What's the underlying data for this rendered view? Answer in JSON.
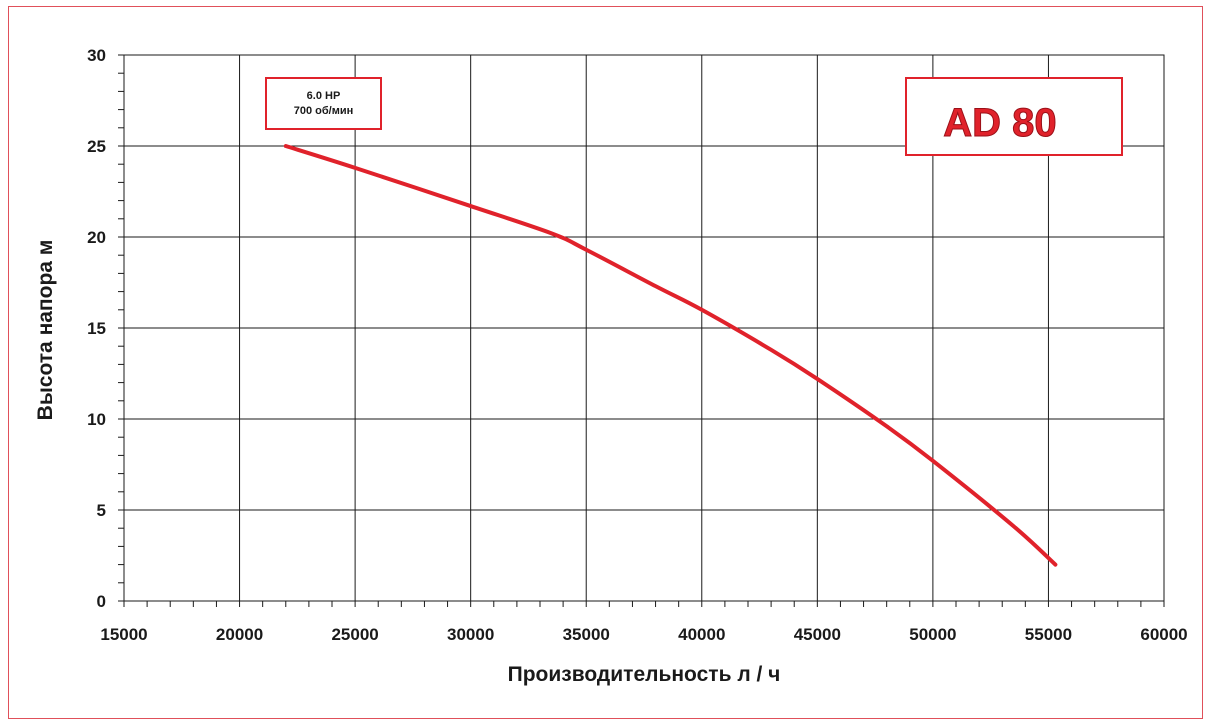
{
  "chart_data": {
    "type": "line",
    "xlabel": "Производительность л / ч",
    "ylabel": "Высота напора м",
    "xlim": [
      15000,
      60000
    ],
    "ylim": [
      0,
      30
    ],
    "x_ticks": [
      15000,
      20000,
      25000,
      30000,
      35000,
      40000,
      45000,
      50000,
      55000,
      60000
    ],
    "y_ticks": [
      0,
      5,
      10,
      15,
      20,
      25,
      30
    ],
    "grid": true,
    "series": [
      {
        "color": "#e0222b",
        "points": [
          [
            22000,
            25.0
          ],
          [
            25000,
            23.8
          ],
          [
            30000,
            21.7
          ],
          [
            33500,
            20.2
          ],
          [
            35000,
            19.3
          ],
          [
            38000,
            17.3
          ],
          [
            40000,
            16.0
          ],
          [
            43000,
            13.8
          ],
          [
            45000,
            12.2
          ],
          [
            48000,
            9.6
          ],
          [
            50000,
            7.7
          ],
          [
            53500,
            4.1
          ],
          [
            55300,
            2.0
          ]
        ]
      }
    ],
    "annotations": {
      "spec_line1": "6.0 HP",
      "spec_line2": "700 об/мин",
      "model": "AD 80"
    }
  },
  "colors": {
    "frame": "#e0505a",
    "curve": "#e0222b",
    "box_border": "#e0222b",
    "grid": "#1a1a1a"
  }
}
